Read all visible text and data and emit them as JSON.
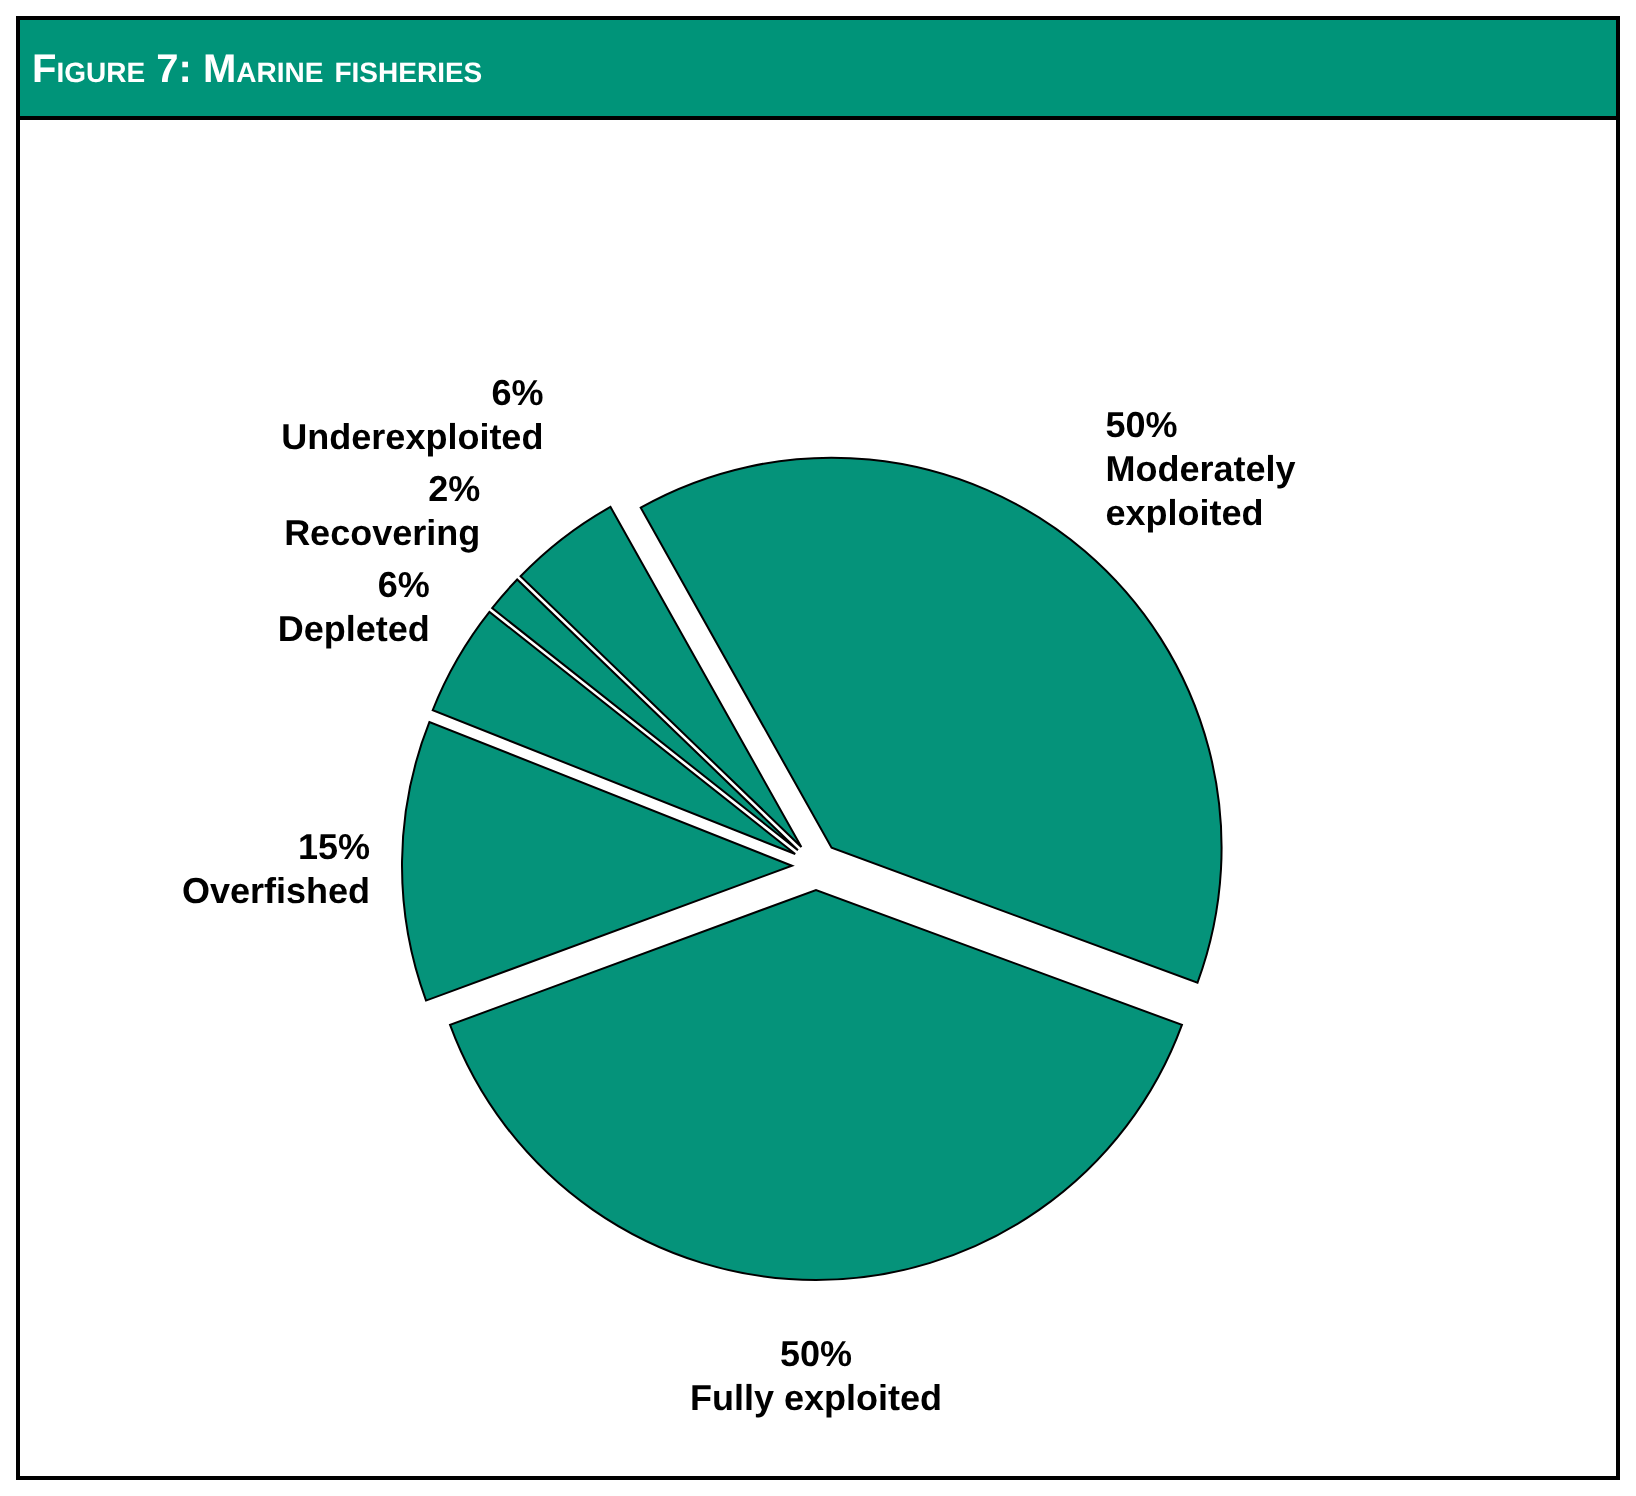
{
  "chart_data": {
    "type": "pie",
    "title": "Figure 7: Marine fisheries",
    "categories": [
      "Fully exploited",
      "Overfished",
      "Depleted",
      "Recovering",
      "Underexploited",
      "Moderately exploited"
    ],
    "values": [
      50,
      15,
      6,
      2,
      6,
      50
    ],
    "value_labels": [
      "50%",
      "15%",
      "6%",
      "2%",
      "6%",
      "50%"
    ],
    "colors": [
      "#05937a",
      "#05937a",
      "#05937a",
      "#05937a",
      "#05937a",
      "#05937a"
    ]
  }
}
